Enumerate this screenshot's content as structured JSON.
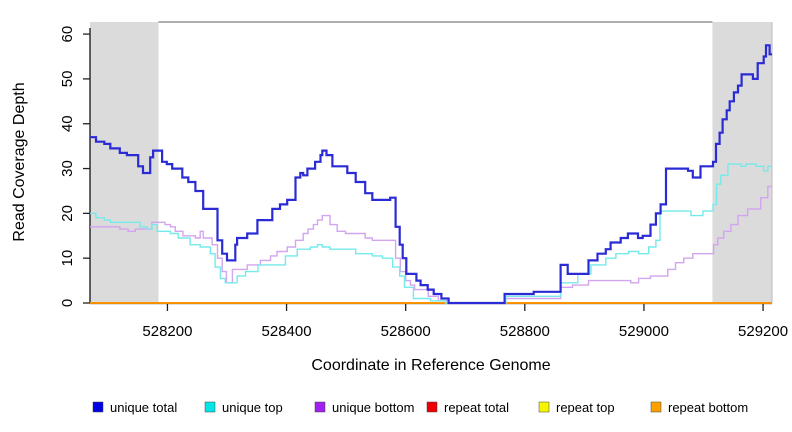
{
  "chart_data": {
    "type": "line",
    "step": true,
    "title": "",
    "xlabel": "Coordinate in Reference Genome",
    "ylabel": "Read Coverage Depth",
    "xlim": [
      528070,
      529215
    ],
    "ylim": [
      0,
      62.7
    ],
    "x_ticks": [
      528200,
      528400,
      528600,
      528800,
      529000,
      529200
    ],
    "y_ticks": [
      0,
      10,
      20,
      30,
      40,
      50,
      60
    ],
    "grid": false,
    "legend_position": "bottom",
    "shaded_region_color": "#dbdbdb",
    "shaded_regions": [
      {
        "from": 528070,
        "to": 528185
      },
      {
        "from": 529115,
        "to": 529215
      }
    ],
    "series": [
      {
        "name": "repeat total",
        "color": "#ee0000",
        "line_color": "#ee0000",
        "points": [
          [
            528070,
            0
          ],
          [
            529215,
            0
          ]
        ]
      },
      {
        "name": "repeat top",
        "color": "#f5f500",
        "line_color": "#f5f500",
        "points": [
          [
            528070,
            0
          ],
          [
            529215,
            0
          ]
        ]
      },
      {
        "name": "repeat bottom",
        "color": "#ffa000",
        "line_color": "#ff9100",
        "points": [
          [
            528070,
            0
          ],
          [
            529215,
            0
          ]
        ]
      },
      {
        "name": "unique bottom",
        "color": "#a020f0",
        "line_color": "#d3a4ef",
        "points": [
          [
            528070,
            17
          ],
          [
            528120,
            16.5
          ],
          [
            528134,
            16
          ],
          [
            528146,
            16.5
          ],
          [
            528174,
            18
          ],
          [
            528196,
            17.5
          ],
          [
            528205,
            17
          ],
          [
            528213,
            16
          ],
          [
            528226,
            15
          ],
          [
            528247,
            14.5
          ],
          [
            528255,
            16
          ],
          [
            528260,
            14.5
          ],
          [
            528275,
            13
          ],
          [
            528284,
            10
          ],
          [
            528292,
            7
          ],
          [
            528299,
            4.5
          ],
          [
            528309,
            7.5
          ],
          [
            528334,
            8.5
          ],
          [
            528356,
            9.5
          ],
          [
            528373,
            10.5
          ],
          [
            528384,
            11.5
          ],
          [
            528401,
            12.5
          ],
          [
            528415,
            14
          ],
          [
            528428,
            15.5
          ],
          [
            528436,
            16.5
          ],
          [
            528445,
            17.5
          ],
          [
            528452,
            18.5
          ],
          [
            528460,
            19.5
          ],
          [
            528473,
            17.5
          ],
          [
            528485,
            16
          ],
          [
            528499,
            15.5
          ],
          [
            528532,
            14.5
          ],
          [
            528544,
            14
          ],
          [
            528583,
            10
          ],
          [
            528591,
            7
          ],
          [
            528600,
            5
          ],
          [
            528608,
            4
          ],
          [
            528615,
            3
          ],
          [
            528638,
            1.5
          ],
          [
            528655,
            0.5
          ],
          [
            528672,
            0
          ],
          [
            528768,
            1
          ],
          [
            528860,
            3.5
          ],
          [
            528880,
            4
          ],
          [
            528907,
            5
          ],
          [
            528978,
            4.5
          ],
          [
            528991,
            5.5
          ],
          [
            529011,
            6
          ],
          [
            529040,
            7.5
          ],
          [
            529053,
            9
          ],
          [
            529067,
            10
          ],
          [
            529082,
            11
          ],
          [
            529117,
            13
          ],
          [
            529124,
            14.5
          ],
          [
            529134,
            16
          ],
          [
            529146,
            17.5
          ],
          [
            529158,
            19.5
          ],
          [
            529174,
            21
          ],
          [
            529196,
            23.5
          ],
          [
            529208,
            26
          ]
        ]
      },
      {
        "name": "unique top",
        "color": "#00e5e5",
        "line_color": "#76eaea",
        "points": [
          [
            528070,
            20
          ],
          [
            528080,
            19
          ],
          [
            528094,
            18.5
          ],
          [
            528104,
            18
          ],
          [
            528154,
            17
          ],
          [
            528166,
            16.5
          ],
          [
            528174,
            17.5
          ],
          [
            528183,
            16
          ],
          [
            528205,
            15.5
          ],
          [
            528218,
            14.5
          ],
          [
            528238,
            13
          ],
          [
            528255,
            12.5
          ],
          [
            528272,
            11
          ],
          [
            528280,
            8
          ],
          [
            528289,
            5.5
          ],
          [
            528297,
            4.5
          ],
          [
            528317,
            6
          ],
          [
            528331,
            7
          ],
          [
            528352,
            8.5
          ],
          [
            528398,
            10.5
          ],
          [
            528418,
            12
          ],
          [
            528440,
            12.5
          ],
          [
            528452,
            13
          ],
          [
            528460,
            12.5
          ],
          [
            528473,
            12
          ],
          [
            528516,
            11
          ],
          [
            528544,
            10.5
          ],
          [
            528561,
            10
          ],
          [
            528578,
            8
          ],
          [
            528590,
            6
          ],
          [
            528598,
            3.5
          ],
          [
            528613,
            1
          ],
          [
            528642,
            0.5
          ],
          [
            528667,
            0
          ],
          [
            528768,
            1.5
          ],
          [
            528860,
            4.5
          ],
          [
            528889,
            6.5
          ],
          [
            528911,
            8.5
          ],
          [
            528936,
            10
          ],
          [
            528953,
            11
          ],
          [
            528974,
            11.5
          ],
          [
            528991,
            11
          ],
          [
            529008,
            12.5
          ],
          [
            529020,
            14
          ],
          [
            529027,
            20.5
          ],
          [
            529079,
            19.5
          ],
          [
            529099,
            20.5
          ],
          [
            529116,
            22
          ],
          [
            529122,
            26.5
          ],
          [
            529129,
            28.5
          ],
          [
            529141,
            31
          ],
          [
            529163,
            30.5
          ],
          [
            529171,
            31
          ],
          [
            529188,
            30.5
          ],
          [
            529201,
            29.5
          ],
          [
            529208,
            30.5
          ]
        ]
      },
      {
        "name": "unique total",
        "color": "#0000e6",
        "line_color": "#2b2bd5",
        "points": [
          [
            528070,
            37
          ],
          [
            528080,
            36
          ],
          [
            528094,
            35.5
          ],
          [
            528104,
            34.5
          ],
          [
            528120,
            33.5
          ],
          [
            528132,
            33
          ],
          [
            528151,
            30.5
          ],
          [
            528159,
            29
          ],
          [
            528171,
            32.5
          ],
          [
            528176,
            34
          ],
          [
            528191,
            31.5
          ],
          [
            528199,
            31
          ],
          [
            528208,
            30
          ],
          [
            528225,
            28
          ],
          [
            528235,
            27
          ],
          [
            528247,
            25
          ],
          [
            528260,
            21
          ],
          [
            528284,
            14
          ],
          [
            528292,
            11
          ],
          [
            528300,
            9.5
          ],
          [
            528314,
            13
          ],
          [
            528317,
            14.5
          ],
          [
            528334,
            15.5
          ],
          [
            528351,
            18.5
          ],
          [
            528376,
            21
          ],
          [
            528389,
            22
          ],
          [
            528401,
            23
          ],
          [
            528415,
            28
          ],
          [
            528423,
            29
          ],
          [
            528428,
            28.5
          ],
          [
            528435,
            30
          ],
          [
            528448,
            31.5
          ],
          [
            528457,
            33
          ],
          [
            528460,
            34
          ],
          [
            528467,
            33
          ],
          [
            528477,
            30.5
          ],
          [
            528502,
            29
          ],
          [
            528516,
            27
          ],
          [
            528532,
            24.5
          ],
          [
            528544,
            23
          ],
          [
            528574,
            23.5
          ],
          [
            528583,
            17
          ],
          [
            528590,
            13
          ],
          [
            528595,
            10
          ],
          [
            528601,
            6.5
          ],
          [
            528618,
            5
          ],
          [
            528625,
            4
          ],
          [
            528637,
            3
          ],
          [
            528647,
            2
          ],
          [
            528660,
            1
          ],
          [
            528672,
            0
          ],
          [
            528766,
            2
          ],
          [
            528815,
            2.5
          ],
          [
            528860,
            8.5
          ],
          [
            528872,
            6.5
          ],
          [
            528907,
            9.5
          ],
          [
            528922,
            11
          ],
          [
            528936,
            12
          ],
          [
            528944,
            13.5
          ],
          [
            528961,
            14.5
          ],
          [
            528973,
            15.5
          ],
          [
            528990,
            14.5
          ],
          [
            528998,
            15
          ],
          [
            529011,
            17.5
          ],
          [
            529020,
            20
          ],
          [
            529028,
            22
          ],
          [
            529037,
            30
          ],
          [
            529074,
            29.5
          ],
          [
            529082,
            28
          ],
          [
            529095,
            30.5
          ],
          [
            529116,
            31.5
          ],
          [
            529121,
            35.5
          ],
          [
            529127,
            38
          ],
          [
            529132,
            41
          ],
          [
            529139,
            43
          ],
          [
            529144,
            45
          ],
          [
            529151,
            47
          ],
          [
            529158,
            48.5
          ],
          [
            529164,
            51
          ],
          [
            529183,
            50
          ],
          [
            529191,
            53.5
          ],
          [
            529201,
            55
          ],
          [
            529205,
            57.5
          ],
          [
            529211,
            55.5
          ]
        ]
      }
    ],
    "legend": [
      "unique total",
      "unique top",
      "unique bottom",
      "repeat total",
      "repeat top",
      "repeat bottom"
    ]
  }
}
